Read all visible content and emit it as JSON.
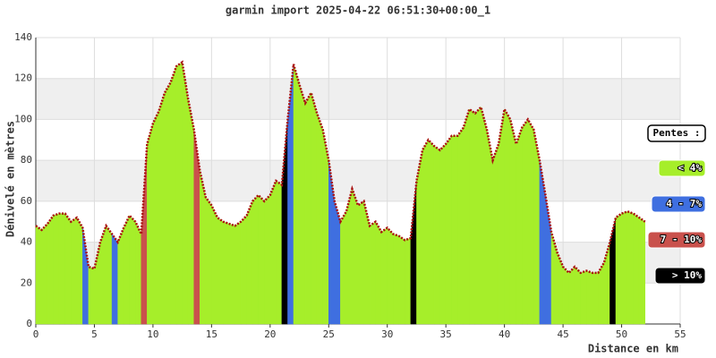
{
  "chart_data": {
    "type": "area",
    "title": "garmin import 2025-04-22 06:51:30+00:00_1",
    "x_label": "Distance en km",
    "y_label": "Dénivelé en mètres",
    "xlim": [
      0,
      55
    ],
    "xticks": [
      0,
      5,
      10,
      15,
      20,
      25,
      30,
      35,
      40,
      45,
      50,
      55
    ],
    "ylim": [
      0,
      140
    ],
    "yticks": [
      0,
      20,
      40,
      60,
      80,
      100,
      120,
      140
    ],
    "bands": [
      [
        20,
        40
      ],
      [
        60,
        80
      ],
      [
        100,
        120
      ]
    ],
    "line_color": "#aa1111",
    "legend_title": "Pentes :",
    "slope_classes": [
      {
        "name": "< 4%",
        "color": "#a6ee2a"
      },
      {
        "name": "4 - 7%",
        "color": "#3f6fe0"
      },
      {
        "name": "7 - 10%",
        "color": "#c9514c"
      },
      {
        "name": "> 10%",
        "color": "#000000"
      }
    ],
    "x": [
      0,
      0.5,
      1,
      1.5,
      2,
      2.5,
      3,
      3.5,
      4,
      4.5,
      5,
      5.5,
      6,
      6.5,
      7,
      7.5,
      8,
      8.5,
      9,
      9.5,
      10,
      10.5,
      11,
      11.5,
      12,
      12.5,
      13,
      13.5,
      14,
      14.5,
      15,
      15.5,
      16,
      16.5,
      17,
      17.5,
      18,
      18.5,
      19,
      19.5,
      20,
      20.5,
      21,
      21.5,
      22,
      22.5,
      23,
      23.5,
      24,
      24.5,
      25,
      25.5,
      26,
      26.5,
      27,
      27.5,
      28,
      28.5,
      29,
      29.5,
      30,
      30.5,
      31,
      31.5,
      32,
      32.5,
      33,
      33.5,
      34,
      34.5,
      35,
      35.5,
      36,
      36.5,
      37,
      37.5,
      38,
      38.5,
      39,
      39.5,
      40,
      40.5,
      41,
      41.5,
      42,
      42.5,
      43,
      43.5,
      44,
      44.5,
      45,
      45.5,
      46,
      46.5,
      47,
      47.5,
      48,
      48.5,
      49,
      49.5,
      50,
      50.5,
      51,
      51.5,
      52
    ],
    "y": [
      48,
      46,
      49,
      53,
      54,
      54,
      50,
      52,
      47,
      28,
      27,
      40,
      48,
      44,
      40,
      47,
      53,
      50,
      44,
      88,
      98,
      104,
      113,
      118,
      126,
      128,
      110,
      95,
      75,
      62,
      58,
      52,
      50,
      49,
      48,
      50,
      53,
      60,
      63,
      60,
      63,
      70,
      68,
      100,
      127,
      117,
      108,
      113,
      103,
      95,
      80,
      60,
      50,
      55,
      66,
      58,
      60,
      48,
      50,
      45,
      47,
      44,
      43,
      41,
      42,
      70,
      85,
      90,
      87,
      85,
      88,
      92,
      92,
      96,
      105,
      103,
      106,
      95,
      80,
      88,
      105,
      100,
      88,
      96,
      100,
      95,
      80,
      63,
      45,
      35,
      28,
      25,
      28,
      25,
      26,
      25,
      25,
      30,
      40,
      52,
      54,
      55,
      54,
      52,
      50
    ],
    "slope_class": [
      0,
      0,
      0,
      0,
      0,
      0,
      0,
      0,
      1,
      0,
      0,
      0,
      0,
      1,
      0,
      0,
      0,
      0,
      2,
      0,
      0,
      0,
      0,
      0,
      0,
      0,
      0,
      2,
      0,
      0,
      0,
      0,
      0,
      0,
      0,
      0,
      0,
      0,
      0,
      0,
      0,
      0,
      3,
      1,
      0,
      0,
      0,
      0,
      0,
      0,
      1,
      1,
      0,
      0,
      0,
      0,
      0,
      0,
      0,
      0,
      0,
      0,
      0,
      0,
      3,
      0,
      0,
      0,
      0,
      0,
      0,
      0,
      0,
      0,
      0,
      0,
      0,
      0,
      0,
      0,
      0,
      0,
      0,
      0,
      0,
      0,
      1,
      1,
      0,
      0,
      0,
      0,
      0,
      0,
      0,
      0,
      0,
      0,
      3,
      0,
      0,
      0,
      0,
      0,
      0
    ]
  }
}
